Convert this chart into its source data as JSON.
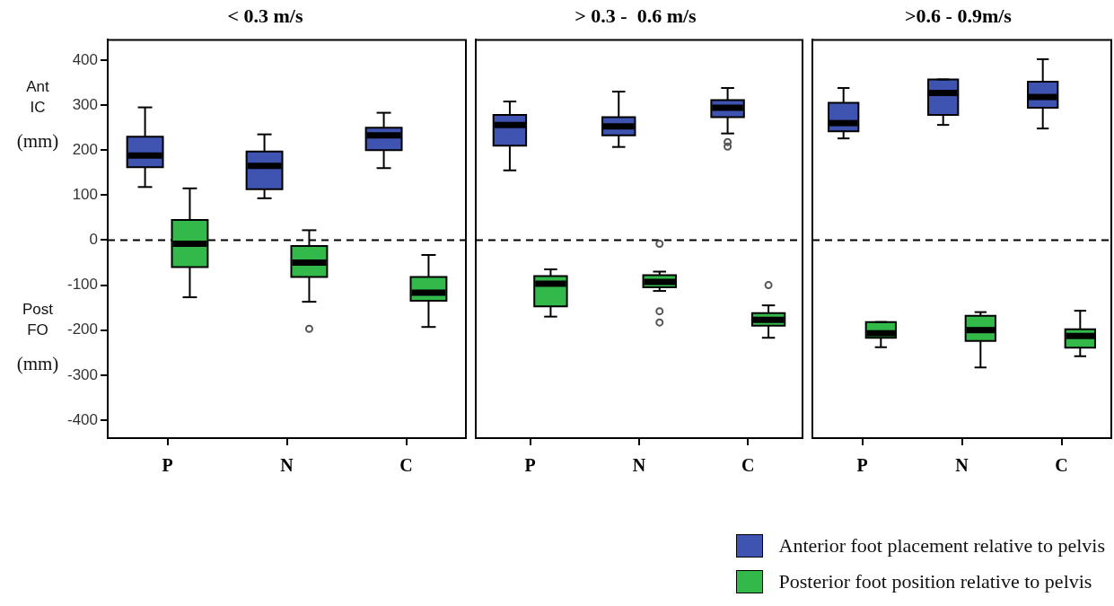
{
  "chart_data": [
    {
      "type": "box",
      "title": "< 0.3 m/s",
      "categories": [
        "P",
        "N",
        "C"
      ],
      "series": [
        {
          "name": "Anterior foot placement relative to pelvis",
          "color": "#3f53b0",
          "boxes": [
            {
              "low": 118,
              "q1": 162,
              "median": 188,
              "q3": 230,
              "high": 295
            },
            {
              "low": 93,
              "q1": 113,
              "median": 165,
              "q3": 197,
              "high": 235
            },
            {
              "low": 160,
              "q1": 200,
              "median": 233,
              "q3": 250,
              "high": 283
            }
          ]
        },
        {
          "name": "Posterior foot position relative to pelvis",
          "color": "#33b84a",
          "boxes": [
            {
              "low": -127,
              "q1": -60,
              "median": -8,
              "q3": 45,
              "high": 115
            },
            {
              "low": -137,
              "q1": -82,
              "median": -50,
              "q3": -13,
              "high": 22,
              "outliers": [
                -197
              ]
            },
            {
              "low": -193,
              "q1": -135,
              "median": -117,
              "q3": -82,
              "high": -33
            }
          ]
        }
      ],
      "ylim": [
        -440,
        445
      ],
      "yticks": [
        -400,
        -300,
        -200,
        -100,
        0,
        100,
        200,
        300,
        400
      ],
      "ref_lines": [
        {
          "axis": "y",
          "value": 0,
          "line_style": "dashed"
        }
      ],
      "annotations": [
        "Ant IC (mm)",
        "Post FO (mm)"
      ],
      "legend": "bottom right"
    },
    {
      "type": "box",
      "title": "> 0.3 -  0.6 m/s",
      "categories": [
        "P",
        "N",
        "C"
      ],
      "series": [
        {
          "color": "#3f53b0",
          "boxes": [
            {
              "low": 155,
              "q1": 210,
              "median": 256,
              "q3": 278,
              "high": 308
            },
            {
              "low": 207,
              "q1": 233,
              "median": 253,
              "q3": 273,
              "high": 330
            },
            {
              "low": 237,
              "q1": 273,
              "median": 294,
              "q3": 311,
              "high": 338,
              "outliers": [
                218,
                208
              ]
            }
          ]
        },
        {
          "color": "#33b84a",
          "boxes": [
            {
              "low": -170,
              "q1": -147,
              "median": -97,
              "q3": -80,
              "high": -65
            },
            {
              "low": -113,
              "q1": -105,
              "median": -93,
              "q3": -78,
              "high": -70,
              "outliers": [
                -8,
                -158,
                -183
              ]
            },
            {
              "low": -217,
              "q1": -190,
              "median": -177,
              "q3": -162,
              "high": -145,
              "outliers": [
                -100
              ]
            }
          ]
        }
      ],
      "ylim": [
        -440,
        445
      ],
      "yticks": [
        -400,
        -300,
        -200,
        -100,
        0,
        100,
        200,
        300,
        400
      ],
      "ref_lines": [
        {
          "axis": "y",
          "value": 0,
          "line_style": "dashed"
        }
      ],
      "tick_labels": "x"
    },
    {
      "type": "box",
      "title": ">0.6 - 0.9m/s",
      "categories": [
        "P",
        "N",
        "C"
      ],
      "series": [
        {
          "color": "#3f53b0",
          "boxes": [
            {
              "low": 226,
              "q1": 242,
              "median": 260,
              "q3": 305,
              "high": 338
            },
            {
              "low": 256,
              "q1": 278,
              "median": 327,
              "q3": 357,
              "high": 357
            },
            {
              "low": 248,
              "q1": 294,
              "median": 318,
              "q3": 352,
              "high": 402
            }
          ]
        },
        {
          "color": "#33b84a",
          "boxes": [
            {
              "low": -238,
              "q1": -217,
              "median": -207,
              "q3": -182,
              "high": -182
            },
            {
              "low": -283,
              "q1": -224,
              "median": -200,
              "q3": -168,
              "high": -160
            },
            {
              "low": -258,
              "q1": -239,
              "median": -213,
              "q3": -198,
              "high": -157
            }
          ]
        }
      ],
      "ylim": [
        -440,
        445
      ],
      "yticks": [
        -400,
        -300,
        -200,
        -100,
        0,
        100,
        200,
        300,
        400
      ],
      "ref_lines": [
        {
          "axis": "y",
          "value": 0,
          "line_style": "dashed"
        }
      ],
      "tick_labels": "x"
    }
  ]
}
